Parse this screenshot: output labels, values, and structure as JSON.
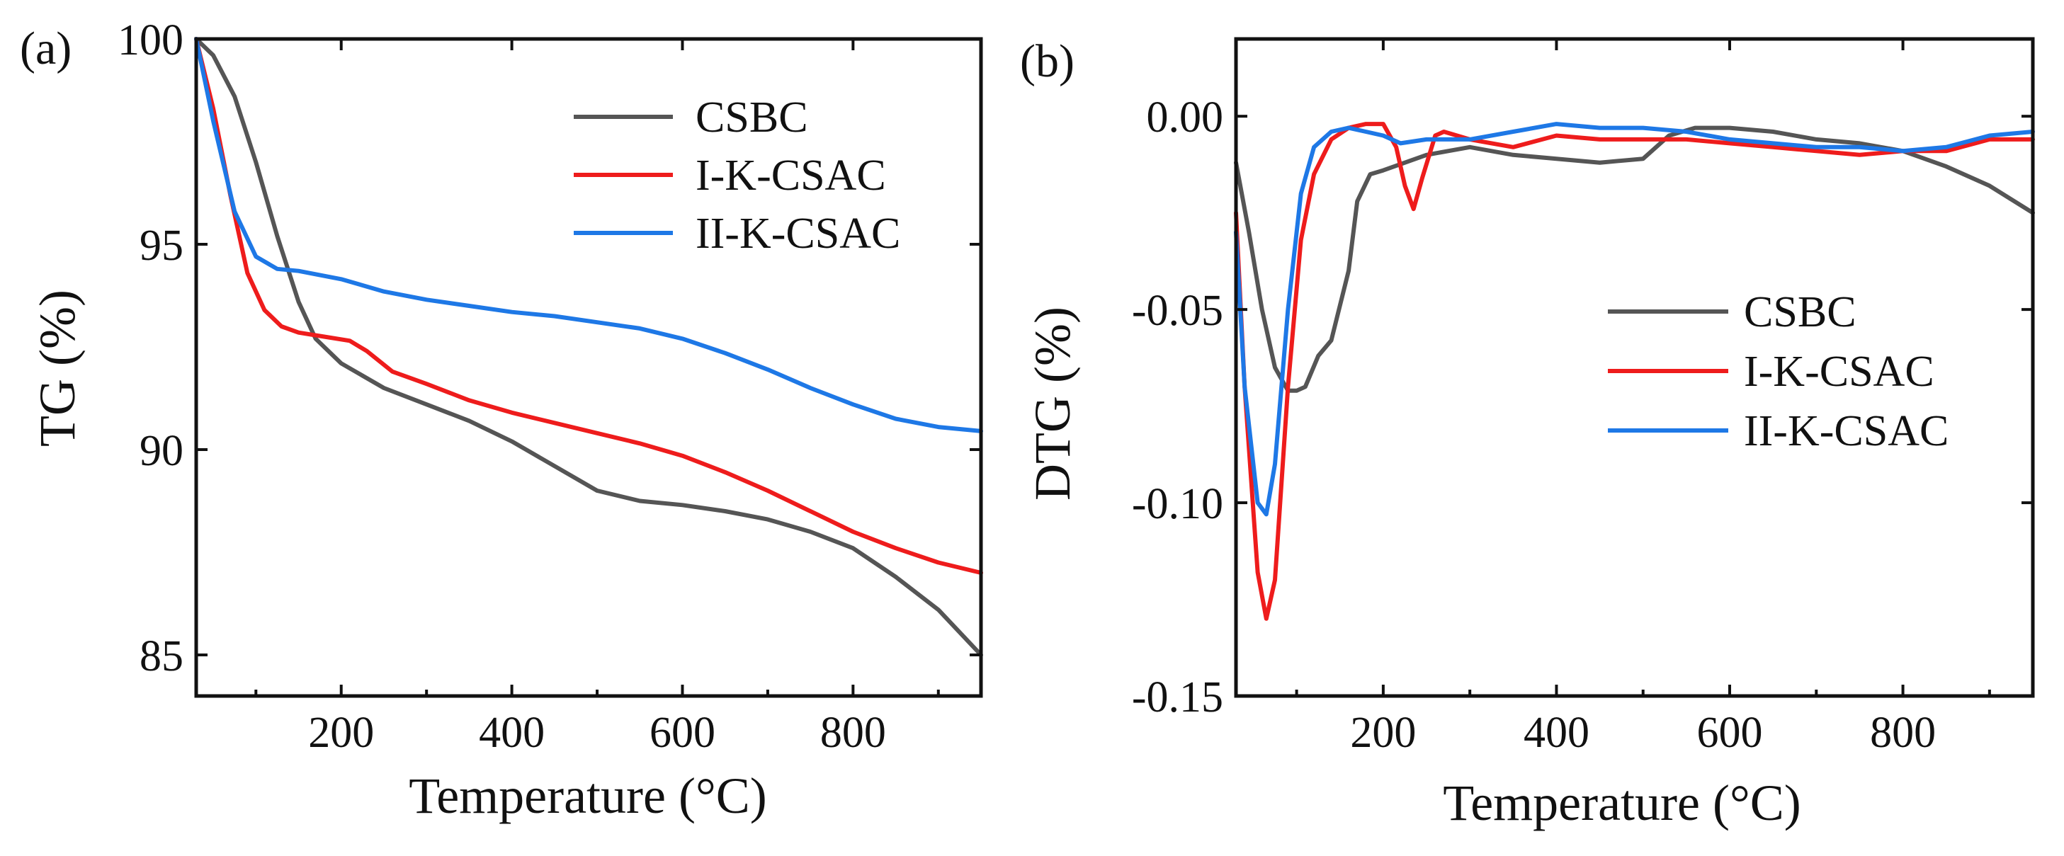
{
  "chart_data": [
    {
      "panel": "(a)",
      "type": "line",
      "xlabel": "Temperature (°C)",
      "ylabel": "TG (%)",
      "xlim": [
        30,
        950
      ],
      "ylim": [
        84,
        100
      ],
      "xticks": [
        200,
        400,
        600,
        800
      ],
      "yticks": [
        85,
        90,
        95,
        100
      ],
      "legend_position": "top-right",
      "grid": false,
      "series": [
        {
          "name": "CSBC",
          "color": "#555555",
          "x": [
            30,
            50,
            75,
            100,
            125,
            150,
            170,
            200,
            250,
            300,
            350,
            400,
            450,
            500,
            550,
            600,
            650,
            700,
            750,
            800,
            850,
            900,
            950
          ],
          "y": [
            100,
            99.6,
            98.6,
            97.0,
            95.2,
            93.6,
            92.7,
            92.1,
            91.5,
            91.1,
            90.7,
            90.2,
            89.6,
            89.0,
            88.75,
            88.65,
            88.5,
            88.3,
            88.0,
            87.6,
            86.9,
            86.1,
            85.0
          ]
        },
        {
          "name": "I-K-CSAC",
          "color": "#ee1c1c",
          "x": [
            30,
            50,
            70,
            90,
            110,
            130,
            150,
            180,
            210,
            230,
            260,
            300,
            350,
            400,
            450,
            500,
            550,
            600,
            650,
            700,
            750,
            800,
            850,
            900,
            950
          ],
          "y": [
            100,
            98.3,
            96.2,
            94.3,
            93.4,
            93.0,
            92.85,
            92.75,
            92.65,
            92.4,
            91.9,
            91.6,
            91.2,
            90.9,
            90.65,
            90.4,
            90.15,
            89.85,
            89.45,
            89.0,
            88.5,
            88.0,
            87.6,
            87.25,
            87.0
          ]
        },
        {
          "name": "II-K-CSAC",
          "color": "#1e78e6",
          "x": [
            30,
            50,
            75,
            100,
            125,
            150,
            200,
            250,
            300,
            350,
            400,
            450,
            500,
            550,
            600,
            650,
            700,
            750,
            800,
            850,
            900,
            950
          ],
          "y": [
            100,
            98.0,
            95.8,
            94.7,
            94.4,
            94.35,
            94.15,
            93.85,
            93.65,
            93.5,
            93.35,
            93.25,
            93.1,
            92.95,
            92.7,
            92.35,
            91.95,
            91.5,
            91.1,
            90.75,
            90.55,
            90.45
          ]
        }
      ]
    },
    {
      "panel": "(b)",
      "type": "line",
      "xlabel": "Temperature (°C)",
      "ylabel": "DTG (%)",
      "xlim": [
        30,
        950
      ],
      "ylim": [
        -0.15,
        0.02
      ],
      "xticks": [
        200,
        400,
        600,
        800
      ],
      "yticks": [
        0.0,
        -0.05,
        -0.1,
        -0.15
      ],
      "ytick_labels": [
        "0.00",
        "-0.05",
        "-0.10",
        "-0.15"
      ],
      "legend_position": "center-right",
      "grid": false,
      "series": [
        {
          "name": "CSBC",
          "color": "#555555",
          "x": [
            30,
            45,
            60,
            75,
            90,
            100,
            110,
            125,
            140,
            160,
            170,
            185,
            200,
            250,
            300,
            350,
            400,
            450,
            500,
            530,
            560,
            600,
            650,
            700,
            750,
            800,
            850,
            900,
            950
          ],
          "y": [
            -0.012,
            -0.03,
            -0.05,
            -0.065,
            -0.071,
            -0.071,
            -0.07,
            -0.062,
            -0.058,
            -0.04,
            -0.022,
            -0.015,
            -0.014,
            -0.01,
            -0.008,
            -0.01,
            -0.011,
            -0.012,
            -0.011,
            -0.005,
            -0.003,
            -0.003,
            -0.004,
            -0.006,
            -0.007,
            -0.009,
            -0.013,
            -0.018,
            -0.025
          ]
        },
        {
          "name": "I-K-CSAC",
          "color": "#ee1c1c",
          "x": [
            30,
            40,
            55,
            65,
            75,
            90,
            105,
            120,
            140,
            160,
            180,
            200,
            215,
            225,
            235,
            245,
            260,
            270,
            300,
            350,
            400,
            450,
            500,
            550,
            600,
            650,
            700,
            750,
            800,
            850,
            900,
            950
          ],
          "y": [
            -0.025,
            -0.07,
            -0.118,
            -0.13,
            -0.12,
            -0.07,
            -0.032,
            -0.015,
            -0.006,
            -0.003,
            -0.002,
            -0.002,
            -0.008,
            -0.018,
            -0.024,
            -0.016,
            -0.005,
            -0.004,
            -0.006,
            -0.008,
            -0.005,
            -0.006,
            -0.006,
            -0.006,
            -0.007,
            -0.008,
            -0.009,
            -0.01,
            -0.009,
            -0.009,
            -0.006,
            -0.006
          ]
        },
        {
          "name": "II-K-CSAC",
          "color": "#1e78e6",
          "x": [
            30,
            40,
            55,
            65,
            75,
            90,
            105,
            120,
            140,
            160,
            180,
            200,
            220,
            250,
            300,
            350,
            400,
            450,
            500,
            550,
            600,
            650,
            700,
            750,
            800,
            850,
            900,
            950
          ],
          "y": [
            -0.03,
            -0.07,
            -0.1,
            -0.103,
            -0.09,
            -0.05,
            -0.02,
            -0.008,
            -0.004,
            -0.003,
            -0.004,
            -0.005,
            -0.007,
            -0.006,
            -0.006,
            -0.004,
            -0.002,
            -0.003,
            -0.003,
            -0.004,
            -0.006,
            -0.007,
            -0.008,
            -0.008,
            -0.009,
            -0.008,
            -0.005,
            -0.004
          ]
        }
      ]
    }
  ]
}
